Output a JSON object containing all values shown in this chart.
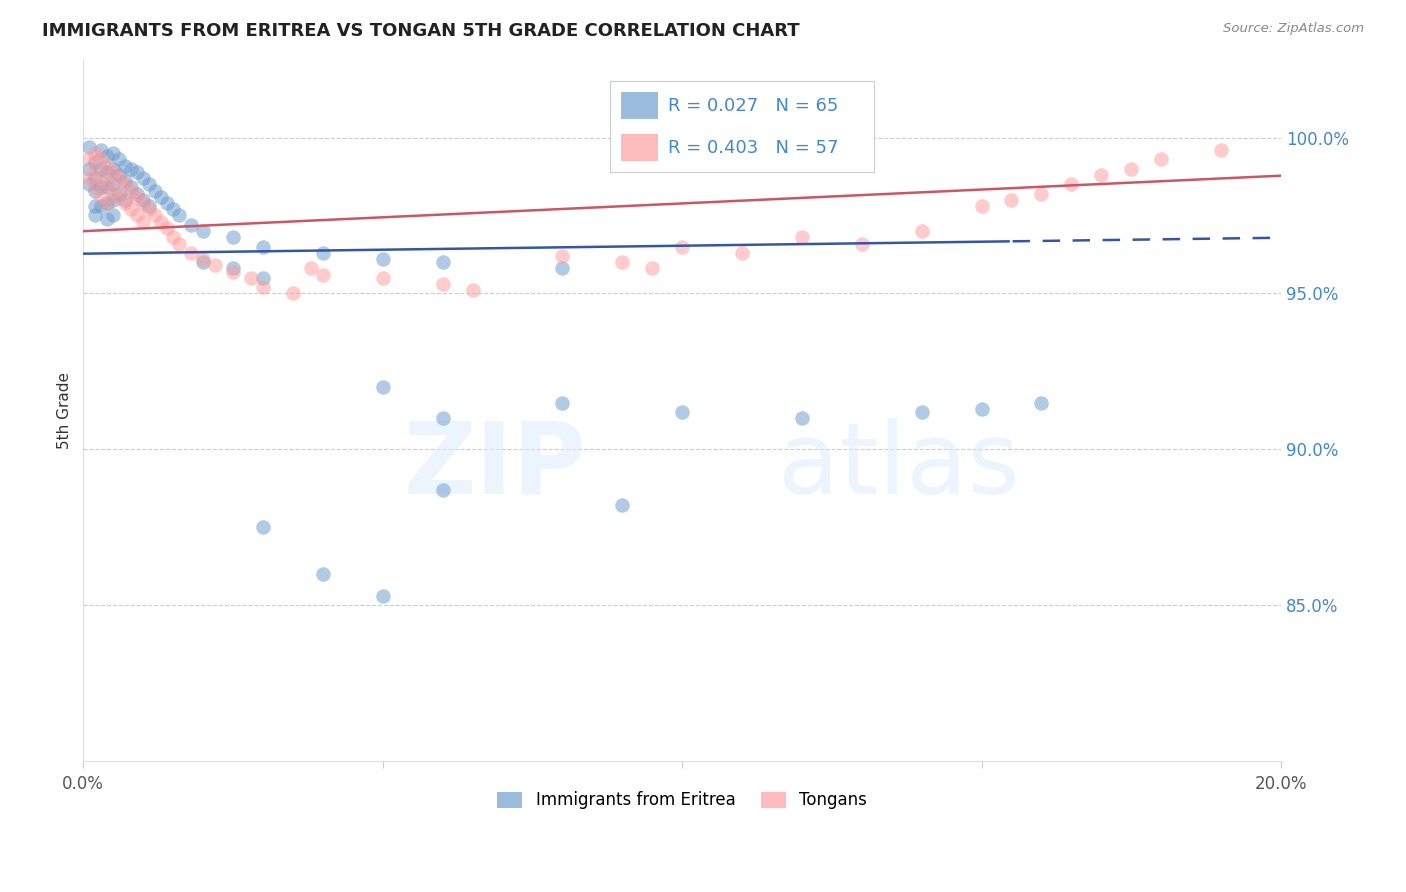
{
  "title": "IMMIGRANTS FROM ERITREA VS TONGAN 5TH GRADE CORRELATION CHART",
  "source": "Source: ZipAtlas.com",
  "ylabel": "5th Grade",
  "ytick_labels": [
    "85.0%",
    "90.0%",
    "95.0%",
    "100.0%"
  ],
  "ytick_values": [
    0.85,
    0.9,
    0.95,
    1.0
  ],
  "xlim": [
    0.0,
    0.2
  ],
  "ylim": [
    0.8,
    1.025
  ],
  "legend_label1": "Immigrants from Eritrea",
  "legend_label2": "Tongans",
  "R1": 0.027,
  "N1": 65,
  "R2": 0.403,
  "N2": 57,
  "blue_color": "#6699CC",
  "pink_color": "#FF9999",
  "trend_blue": "#3355AA",
  "trend_pink": "#CC5566",
  "blue_x": [
    0.001,
    0.001,
    0.001,
    0.002,
    0.002,
    0.002,
    0.002,
    0.002,
    0.003,
    0.003,
    0.003,
    0.003,
    0.004,
    0.004,
    0.004,
    0.004,
    0.004,
    0.005,
    0.005,
    0.005,
    0.005,
    0.005,
    0.006,
    0.006,
    0.006,
    0.007,
    0.007,
    0.007,
    0.008,
    0.008,
    0.009,
    0.009,
    0.01,
    0.01,
    0.011,
    0.011,
    0.012,
    0.013,
    0.014,
    0.015,
    0.016,
    0.018,
    0.02,
    0.025,
    0.03,
    0.04,
    0.05,
    0.06,
    0.02,
    0.025,
    0.03,
    0.08,
    0.05,
    0.08,
    0.06,
    0.1,
    0.12,
    0.14,
    0.15,
    0.16,
    0.03,
    0.04,
    0.05,
    0.06,
    0.09
  ],
  "blue_y": [
    0.99,
    0.997,
    0.985,
    0.992,
    0.987,
    0.983,
    0.978,
    0.975,
    0.996,
    0.99,
    0.984,
    0.978,
    0.994,
    0.989,
    0.984,
    0.979,
    0.974,
    0.995,
    0.99,
    0.985,
    0.98,
    0.975,
    0.993,
    0.988,
    0.982,
    0.991,
    0.986,
    0.98,
    0.99,
    0.984,
    0.989,
    0.982,
    0.987,
    0.98,
    0.985,
    0.978,
    0.983,
    0.981,
    0.979,
    0.977,
    0.975,
    0.972,
    0.97,
    0.968,
    0.965,
    0.963,
    0.961,
    0.96,
    0.96,
    0.958,
    0.955,
    0.958,
    0.92,
    0.915,
    0.91,
    0.912,
    0.91,
    0.912,
    0.913,
    0.915,
    0.875,
    0.86,
    0.853,
    0.887,
    0.882
  ],
  "pink_x": [
    0.001,
    0.001,
    0.002,
    0.002,
    0.002,
    0.003,
    0.003,
    0.003,
    0.004,
    0.004,
    0.004,
    0.005,
    0.005,
    0.006,
    0.006,
    0.007,
    0.007,
    0.008,
    0.008,
    0.009,
    0.009,
    0.01,
    0.01,
    0.011,
    0.012,
    0.013,
    0.014,
    0.015,
    0.016,
    0.018,
    0.02,
    0.022,
    0.025,
    0.028,
    0.03,
    0.035,
    0.038,
    0.04,
    0.05,
    0.06,
    0.065,
    0.08,
    0.09,
    0.095,
    0.1,
    0.11,
    0.12,
    0.13,
    0.14,
    0.15,
    0.155,
    0.16,
    0.165,
    0.17,
    0.175,
    0.18,
    0.19
  ],
  "pink_y": [
    0.993,
    0.987,
    0.995,
    0.99,
    0.984,
    0.993,
    0.987,
    0.981,
    0.991,
    0.985,
    0.979,
    0.989,
    0.983,
    0.987,
    0.981,
    0.985,
    0.979,
    0.983,
    0.977,
    0.981,
    0.975,
    0.979,
    0.973,
    0.977,
    0.975,
    0.973,
    0.971,
    0.968,
    0.966,
    0.963,
    0.961,
    0.959,
    0.957,
    0.955,
    0.952,
    0.95,
    0.958,
    0.956,
    0.955,
    0.953,
    0.951,
    0.962,
    0.96,
    0.958,
    0.965,
    0.963,
    0.968,
    0.966,
    0.97,
    0.978,
    0.98,
    0.982,
    0.985,
    0.988,
    0.99,
    0.993,
    0.996
  ]
}
